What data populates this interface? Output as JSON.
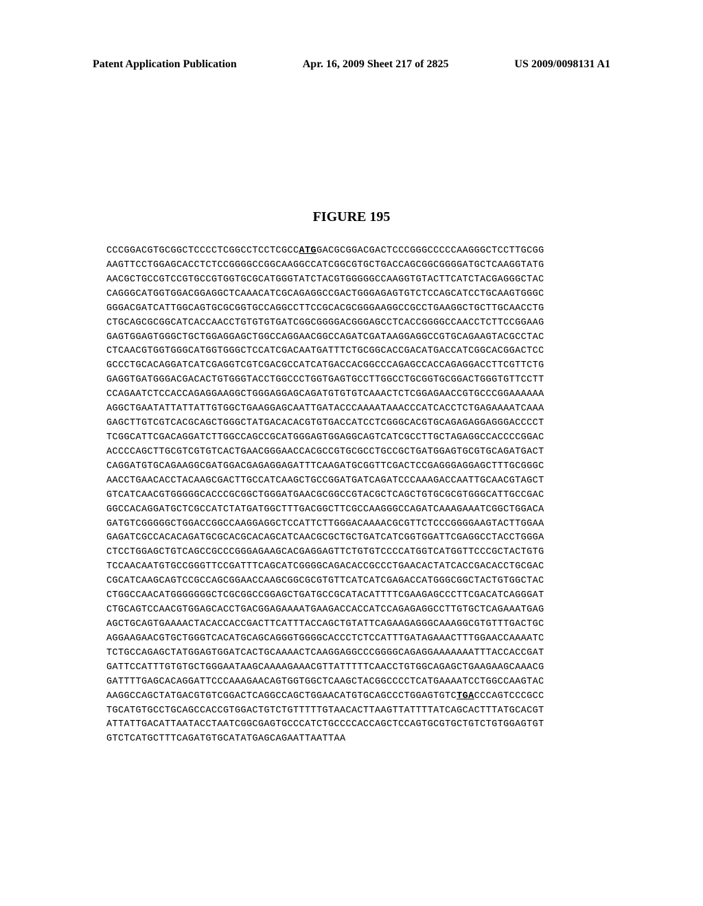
{
  "header": {
    "left": "Patent Application Publication",
    "center": "Apr. 16, 2009  Sheet 217 of 2825",
    "right": "US 2009/0098131 A1"
  },
  "figure": {
    "title": "FIGURE 195"
  },
  "sequence": {
    "line1_pre": "CCCGGACGTGCGGCTCCCCTCGGCCTCCTCGCC",
    "line1_codon": "ATG",
    "line1_post": "GACGCGGACGACTCCCGGGCCCCCAAGGGCTCCTTGCGG",
    "lines": [
      "AAGTTCCTGGAGCACCTCTCCGGGGCCGGCAAGGCCATCGGCGTGCTGACCAGCGGCGGGGATGCTCAAGGTATG",
      "AACGCTGCCGTCCGTGCCGTGGTGCGCATGGGTATCTACGTGGGGGCCAAGGTGTACTTCATCTACGAGGGCTAC",
      "CAGGGCATGGTGGACGGAGGCTCAAACATCGCAGAGGCCGACTGGGAGAGTGTCTCCAGCATCCTGCAAGTGGGC",
      "GGGACGATCATTGGCAGTGCGCGGTGCCAGGCCTTCCGCACGCGGGAAGGCCGCCTGAAGGCTGCTTGCAACCTG",
      "CTGCAGCGCGGCATCACCAACCTGTGTGTGATCGGCGGGGACGGGAGCCTCACCGGGGCCAACCTCTTCCGGAAG",
      "GAGTGGAGTGGGCTGCTGGAGGAGCTGGCCAGGAACGGCCAGATCGATAAGGAGGCCGTGCAGAAGTACGCCTAC",
      "CTCAACGTGGTGGGCATGGTGGGCTCCATCGACAATGATTTCTGCGGCACCGACATGACCATCGGCACGGACTCC",
      "GCCCTGCACAGGATCATCGAGGTCGTCGACGCCATCATGACCACGGCCCAGAGCCACCAGAGGACCTTCGTTCTG",
      "GAGGTGATGGGACGACACTGTGGGTACCTGGCCCTGGTGAGTGCCTTGGCCTGCGGTGCGGACTGGGTGTTCCTT",
      "CCAGAATCTCCACCAGAGGAAGGCTGGGAGGAGCAGATGTGTGTCAAACTCTCGGAGAACCGTGCCCGGAAAAAA",
      "AGGCTGAATATTATTATTGTGGCTGAAGGAGCAATTGATACCCAAAATAAACCCATCACCTCTGAGAAAATCAAA",
      "GAGCTTGTCGTCACGCAGCTGGGCTATGACACACGTGTGACCATCCTCGGGCACGTGCAGAGAGGAGGGACCCCT",
      "TCGGCATTCGACAGGATCTTGGCCAGCCGCATGGGAGTGGAGGCAGTCATCGCCTTGCTAGAGGCCACCCCGGAC",
      "ACCCCAGCTTGCGTCGTGTCACTGAACGGGAACCACGCCGTGCGCCTGCCGCTGATGGAGTGCGTGCAGATGACT",
      "CAGGATGTGCAGAAGGCGATGGACGAGAGGAGATTTCAAGATGCGGTTCGACTCCGAGGGAGGAGCTTTGCGGGC",
      "AACCTGAACACCTACAAGCGACTTGCCATCAAGCTGCCGGATGATCAGATCCCAAAGACCAATTGCAACGTAGCT",
      "GTCATCAACGTGGGGGCACCCGCGGCTGGGATGAACGCGGCCGTACGCTCAGCTGTGCGCGTGGGCATTGCCGAC",
      "GGCCACAGGATGCTCGCCATCTATGATGGCTTTGACGGCTTCGCCAAGGGCCAGATCAAAGAAATCGGCTGGACA",
      "GATGTCGGGGGCTGGACCGGCCAAGGAGGCTCCATTCTTGGGACAAAACGCGTTCTCCCGGGGAAGTACTTGGAA",
      "GAGATCGCCACACAGATGCGCACGCACAGCATCAACGCGCTGCTGATCATCGGTGGATTCGAGGCCTACCTGGGA",
      "CTCCTGGAGCTGTCAGCCGCCCGGGAGAAGCACGAGGAGTTCTGTGTCCCCATGGTCATGGTTCCCGCTACTGTG",
      "TCCAACAATGTGCCGGGTTCCGATTTCAGCATCGGGGCAGACACCGCCCTGAACACTATCACCGACACCTGCGAC",
      "CGCATCAAGCAGTCCGCCAGCGGAACCAAGCGGCGCGTGTTCATCATCGAGACCATGGGCGGCTACTGTGGCTAC",
      "CTGGCCAACATGGGGGGGCTCGCGGCCGGAGCTGATGCCGCATACATTTTCGAAGAGCCCTTCGACATCAGGGAT",
      "CTGCAGTCCAACGTGGAGCACCTGACGGAGAAAATGAAGACCACCATCCAGAGAGGCCTTGTGCTCAGAAATGAG",
      "AGCTGCAGTGAAAACTACACCACCGACTTCATTTACCAGCTGTATTCAGAAGAGGGCAAAGGCGTGTTTGACTGC",
      "AGGAAGAACGTGCTGGGTCACATGCAGCAGGGTGGGGCACCCTCTCCATTTGATAGAAACTTTGGAACCAAAATC",
      "TCTGCCAGAGCTATGGAGTGGATCACTGCAAAACTCAAGGAGGCCCGGGGCAGAGGAAAAAAATTTACCACCGAT",
      "GATTCCATTTGTGTGCTGGGAATAAGCAAAAGAAACGTTATTTTTCAACCTGTGGCAGAGCTGAAGAAGCAAACG",
      "GATTTTGAGCACAGGATTCCCAAAGAACAGTGGTGGCTCAAGCTACGGCCCCTCATGAAAATCCTGGCCAAGTAC"
    ],
    "line_stop_pre": "AAGGCCAGCTATGACGTGTCGGACTCAGGCCAGCTGGAACATGTGCAGCCCTGGAGTGTC",
    "line_stop_codon": "TGA",
    "line_stop_post": "CCCAGTCCCGCC",
    "lines_after": [
      "TGCATGTGCCTGCAGCCACCGTGGACTGTCTGTTTTTGTAACACTTAAGTTATTTTATCAGCACTTTATGCACGT",
      "ATTATTGACATTAATACCTAATCGGCGAGTGCCCATCTGCCCCACCAGCTCCAGTGCGTGCTGTCTGTGGAGTGT",
      "GTCTCATGCTTTCAGATGTGCATATGAGCAGAATTAATTAA"
    ]
  },
  "style": {
    "background_color": "#ffffff",
    "text_color": "#000000",
    "header_fontsize": 16,
    "title_fontsize": 20,
    "sequence_fontsize": 13.5,
    "sequence_line_height": 1.55
  }
}
